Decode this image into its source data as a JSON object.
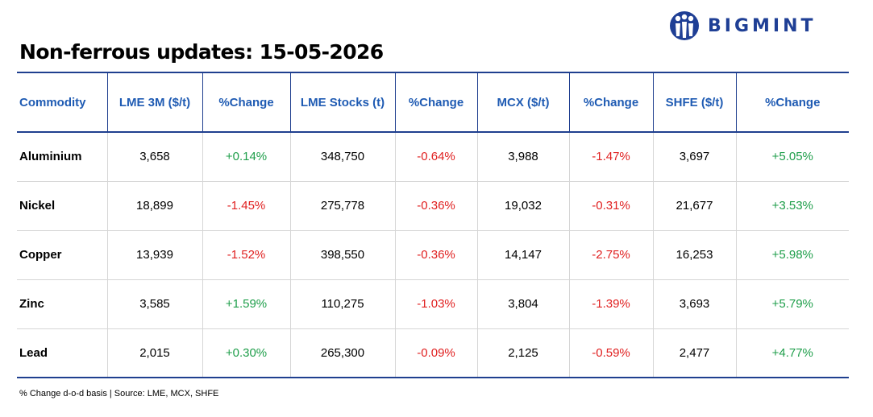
{
  "brand": {
    "name": "BIGMINT",
    "color": "#1f3f95"
  },
  "title": "Non-ferrous updates: 15-05-2026",
  "table": {
    "headers": [
      "Commodity",
      "LME 3M ($/t)",
      "%Change",
      "LME Stocks (t)",
      "%Change",
      "MCX ($/t)",
      "%Change",
      "SHFE ($/t)",
      "%Change"
    ],
    "rows": [
      [
        "Aluminium",
        "3,658",
        "+0.14%",
        "348,750",
        "-0.64%",
        "3,988",
        "-1.47%",
        "3,697",
        "+5.05%"
      ],
      [
        "Nickel",
        "18,899",
        "-1.45%",
        "275,778",
        "-0.36%",
        "19,032",
        "-0.31%",
        "21,677",
        "+3.53%"
      ],
      [
        "Copper",
        "13,939",
        "-1.52%",
        "398,550",
        "-0.36%",
        "14,147",
        "-2.75%",
        "16,253",
        "+5.98%"
      ],
      [
        "Zinc",
        "3,585",
        "+1.59%",
        "110,275",
        "-1.03%",
        "3,804",
        "-1.39%",
        "3,693",
        "+5.79%"
      ],
      [
        "Lead",
        "2,015",
        "+0.30%",
        "265,300",
        "-0.09%",
        "2,125",
        "-0.59%",
        "2,477",
        "+4.77%"
      ]
    ]
  },
  "colors": {
    "header_text": "#1f5bb3",
    "positive": "#1e9e4a",
    "negative": "#e02020",
    "rule": "#1f3f8f"
  },
  "footnote": "% Change d-o-d basis | Source: LME, MCX, SHFE"
}
